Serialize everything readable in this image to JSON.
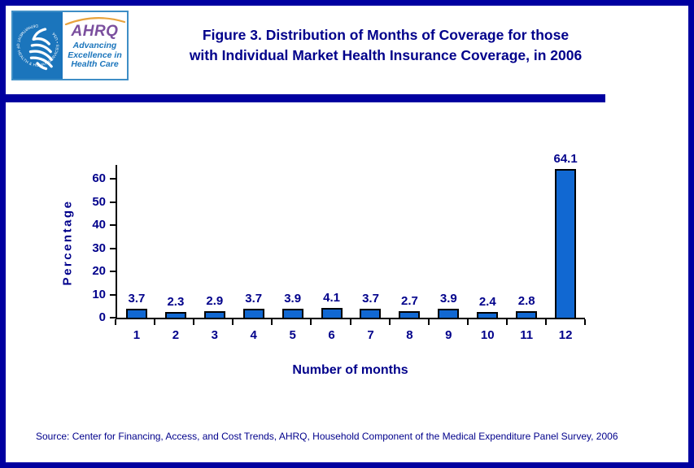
{
  "header": {
    "logo": {
      "seal_text": "DEPARTMENT OF HEALTH & HUMAN SERVICES • USA",
      "ahrq_acronym": "AHRQ",
      "tagline": [
        "Advancing",
        "Excellence in",
        "Health Care"
      ]
    },
    "title_line1": "Figure 3. Distribution of Months of Coverage for those",
    "title_line2": "with Individual Market Health Insurance Coverage, in 2006"
  },
  "chart_data": {
    "type": "bar",
    "title": "Figure 3. Distribution of Months of Coverage for those with Individual Market Health Insurance Coverage, in 2006",
    "categories": [
      "1",
      "2",
      "3",
      "4",
      "5",
      "6",
      "7",
      "8",
      "9",
      "10",
      "11",
      "12"
    ],
    "values": [
      3.7,
      2.3,
      2.9,
      3.7,
      3.9,
      4.1,
      3.7,
      2.7,
      3.9,
      2.4,
      2.8,
      64.1
    ],
    "xlabel": "Number of months",
    "ylabel": "Percentage",
    "ylim": [
      0,
      66
    ],
    "yticks": [
      0,
      10,
      20,
      30,
      40,
      50,
      60
    ],
    "grid": false,
    "legend_position": "none",
    "value_labels_shown": true,
    "bar_color": "#1168D2",
    "bar_border_color": "#000000"
  },
  "footer": {
    "source": "Source: Center for Financing, Access, and Cost Trends, AHRQ, Household Component of the Medical Expenditure Panel Survey, 2006"
  },
  "colors": {
    "navy_text": "#00008B",
    "frame_navy": "#0000A0",
    "bar_blue": "#1168D2",
    "logo_blue": "#1B75BC",
    "ahrq_purple": "#7B4F9E",
    "swoosh_orange": "#E8A33D"
  }
}
